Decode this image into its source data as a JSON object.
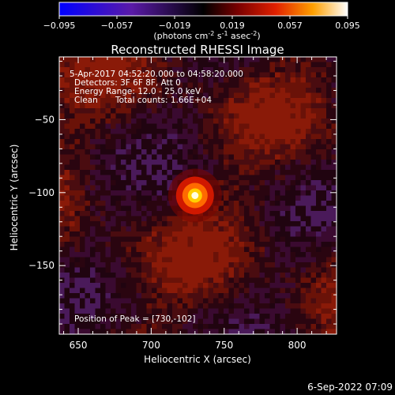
{
  "chart_data": {
    "type": "heatmap",
    "title": "Reconstructed RHESSI Image",
    "xlabel": "Heliocentric X (arcsec)",
    "ylabel": "Heliocentric Y (arcsec)",
    "xlim": [
      637,
      827
    ],
    "ylim": [
      -197,
      -7
    ],
    "xticks": [
      650,
      700,
      750,
      800
    ],
    "yticks": [
      -50,
      -100,
      -150
    ],
    "colorbar": {
      "ticks": [
        -0.095,
        -0.057,
        -0.019,
        0.019,
        0.057,
        0.095
      ],
      "tick_labels": [
        "-0.095",
        "-0.057",
        "-0.019",
        "0.019",
        "0.057",
        "0.095"
      ],
      "label_main": "(photons cm",
      "label_exp1": "-2",
      "label_mid1": " s",
      "label_exp2": "-1",
      "label_mid2": " asec",
      "label_exp3": "-2",
      "label_close": ")",
      "range": [
        -0.095,
        0.095
      ]
    },
    "annotations": {
      "time_range": "5-Apr-2017 04:52:20.000 to 04:58:20.000",
      "detectors": "Detectors: 3F 6F 8F, Att 0",
      "energy": "Energy Range: 12.0 - 25.0 keV",
      "method": "Clean",
      "counts": "Total counts: 1.66E+04",
      "peak": "Position of Peak = [730,-102]"
    },
    "peak": {
      "x": 730,
      "y": -102,
      "value": 0.095
    },
    "source_width_arcsec": 8,
    "footer_date": "6-Sep-2022 07:09"
  }
}
